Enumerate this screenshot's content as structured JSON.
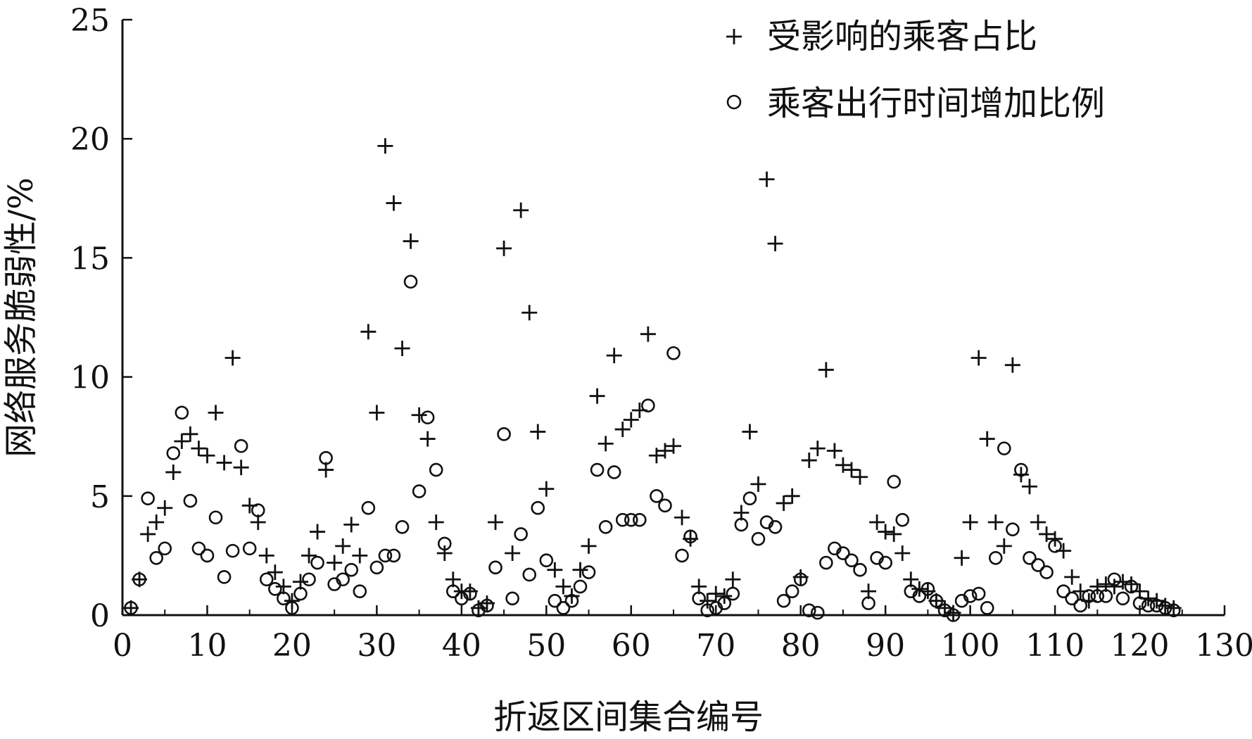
{
  "chart_data": {
    "type": "scatter",
    "title": "",
    "xlabel": "折返区间集合编号",
    "ylabel": "网络服务脆弱性/%",
    "xlim": [
      0,
      130
    ],
    "ylim": [
      0,
      25
    ],
    "xticks": [
      "0",
      "10",
      "20",
      "30",
      "40",
      "50",
      "60",
      "70",
      "80",
      "90",
      "100",
      "110",
      "120",
      "130"
    ],
    "yticks": [
      "0",
      "5",
      "10",
      "15",
      "20",
      "25"
    ],
    "grid": false,
    "legend_position": "top-right",
    "series": [
      {
        "name": "受影响的乘客占比",
        "marker": "plus",
        "color": "#111111",
        "x": [
          1,
          2,
          3,
          4,
          5,
          6,
          7,
          8,
          9,
          10,
          11,
          12,
          13,
          14,
          15,
          16,
          17,
          18,
          19,
          20,
          21,
          22,
          23,
          24,
          25,
          26,
          27,
          28,
          29,
          30,
          31,
          32,
          33,
          34,
          35,
          36,
          37,
          38,
          39,
          40,
          41,
          42,
          43,
          44,
          45,
          46,
          47,
          48,
          49,
          50,
          51,
          52,
          53,
          54,
          55,
          56,
          57,
          58,
          59,
          60,
          61,
          62,
          63,
          64,
          65,
          66,
          67,
          68,
          69,
          70,
          71,
          72,
          73,
          74,
          75,
          76,
          77,
          78,
          79,
          80,
          81,
          82,
          83,
          84,
          85,
          86,
          87,
          88,
          89,
          90,
          91,
          92,
          93,
          94,
          95,
          96,
          97,
          98,
          99,
          100,
          101,
          102,
          103,
          104,
          105,
          106,
          107,
          108,
          109,
          110,
          111,
          112,
          113,
          114,
          115,
          116,
          117,
          118,
          119,
          120,
          121,
          122,
          123,
          124
        ],
        "y": [
          0.3,
          1.5,
          3.4,
          3.9,
          4.5,
          6.0,
          7.3,
          7.6,
          7.0,
          6.7,
          8.5,
          6.4,
          10.8,
          6.2,
          4.6,
          3.9,
          2.5,
          1.8,
          1.2,
          0.6,
          1.4,
          2.5,
          3.5,
          6.1,
          2.2,
          2.9,
          3.8,
          2.5,
          11.9,
          8.5,
          19.7,
          17.3,
          11.2,
          15.7,
          8.4,
          7.4,
          3.9,
          2.6,
          1.5,
          1.0,
          1.0,
          0.3,
          0.5,
          3.9,
          15.4,
          2.6,
          17.0,
          12.7,
          7.7,
          5.3,
          1.9,
          1.2,
          0.8,
          1.9,
          2.9,
          9.2,
          7.2,
          10.9,
          7.8,
          8.2,
          8.6,
          11.8,
          6.7,
          6.9,
          7.1,
          4.1,
          3.2,
          1.2,
          0.6,
          0.9,
          0.8,
          1.5,
          4.3,
          7.7,
          5.5,
          18.3,
          15.6,
          4.7,
          5.0,
          1.6,
          6.5,
          7.0,
          10.3,
          6.9,
          6.3,
          6.1,
          5.8,
          1.0,
          3.9,
          3.5,
          3.4,
          2.6,
          1.5,
          1.1,
          1.0,
          0.6,
          0.3,
          0.1,
          2.4,
          3.9,
          10.8,
          7.4,
          3.9,
          2.9,
          10.5,
          5.9,
          5.4,
          3.9,
          3.4,
          3.2,
          2.7,
          1.6,
          1.0,
          0.6,
          1.2,
          1.3,
          1.2,
          1.4,
          1.3,
          1.0,
          0.7,
          0.6,
          0.4,
          0.3
        ]
      },
      {
        "name": "乘客出行时间增加比例",
        "marker": "circle",
        "color": "#111111",
        "x": [
          1,
          2,
          3,
          4,
          5,
          6,
          7,
          8,
          9,
          10,
          11,
          12,
          13,
          14,
          15,
          16,
          17,
          18,
          19,
          20,
          21,
          22,
          23,
          24,
          25,
          26,
          27,
          28,
          29,
          30,
          31,
          32,
          33,
          34,
          35,
          36,
          37,
          38,
          39,
          40,
          41,
          42,
          43,
          44,
          45,
          46,
          47,
          48,
          49,
          50,
          51,
          52,
          53,
          54,
          55,
          56,
          57,
          58,
          59,
          60,
          61,
          62,
          63,
          64,
          65,
          66,
          67,
          68,
          69,
          70,
          71,
          72,
          73,
          74,
          75,
          76,
          77,
          78,
          79,
          80,
          81,
          82,
          83,
          84,
          85,
          86,
          87,
          88,
          89,
          90,
          91,
          92,
          93,
          94,
          95,
          96,
          97,
          98,
          99,
          100,
          101,
          102,
          103,
          104,
          105,
          106,
          107,
          108,
          109,
          110,
          111,
          112,
          113,
          114,
          115,
          116,
          117,
          118,
          119,
          120,
          121,
          122,
          123,
          124
        ],
        "y": [
          0.3,
          1.5,
          4.9,
          2.4,
          2.8,
          6.8,
          8.5,
          4.8,
          2.8,
          2.5,
          4.1,
          1.6,
          2.7,
          7.1,
          2.8,
          4.4,
          1.5,
          1.1,
          0.7,
          0.3,
          0.9,
          1.5,
          2.2,
          6.6,
          1.3,
          1.5,
          1.9,
          1.0,
          4.5,
          2.0,
          2.5,
          2.5,
          3.7,
          14.0,
          5.2,
          8.3,
          6.1,
          3.0,
          1.0,
          0.7,
          0.9,
          0.2,
          0.4,
          2.0,
          7.6,
          0.7,
          3.4,
          1.7,
          4.5,
          2.3,
          0.6,
          0.3,
          0.6,
          1.2,
          1.8,
          6.1,
          3.7,
          6.0,
          4.0,
          4.0,
          4.0,
          8.8,
          5.0,
          4.6,
          11.0,
          2.5,
          3.3,
          0.7,
          0.2,
          0.3,
          0.5,
          0.9,
          3.8,
          4.9,
          3.2,
          3.9,
          3.7,
          0.6,
          1.0,
          1.5,
          0.2,
          0.1,
          2.2,
          2.8,
          2.6,
          2.3,
          1.9,
          0.5,
          2.4,
          2.2,
          5.6,
          4.0,
          1.0,
          0.8,
          1.1,
          0.6,
          0.2,
          0.0,
          0.6,
          0.8,
          0.9,
          0.3,
          2.4,
          7.0,
          3.6,
          6.1,
          2.4,
          2.1,
          1.8,
          2.9,
          1.0,
          0.7,
          0.4,
          0.8,
          0.8,
          0.8,
          1.5,
          0.7,
          1.2,
          0.5,
          0.4,
          0.4,
          0.3,
          0.2
        ]
      }
    ]
  }
}
